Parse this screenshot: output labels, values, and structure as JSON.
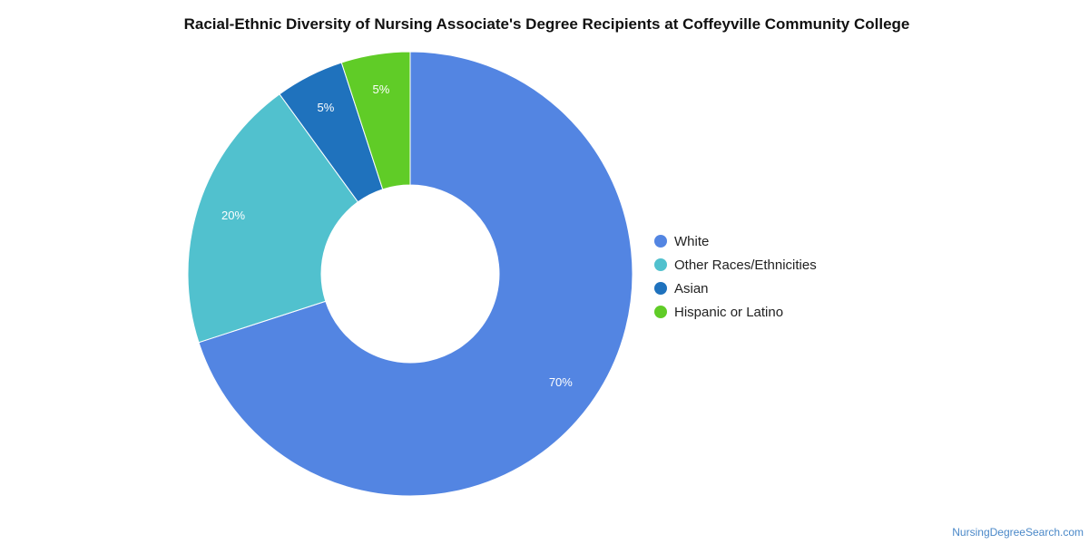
{
  "chart_data": {
    "type": "pie",
    "title": "Racial-Ethnic Diversity of Nursing Associate's Degree Recipients at Coffeyville Community College",
    "categories": [
      "White",
      "Other Races/Ethnicities",
      "Asian",
      "Hispanic or Latino"
    ],
    "values": [
      70,
      20,
      5,
      5
    ],
    "data_labels": [
      "70%",
      "20%",
      "5%",
      "5%"
    ],
    "colors": [
      "#5385e2",
      "#51c1ce",
      "#1f72bd",
      "#60cc27"
    ],
    "donut": true,
    "legend_position": "right"
  },
  "watermark": "NursingDegreeSearch.com"
}
